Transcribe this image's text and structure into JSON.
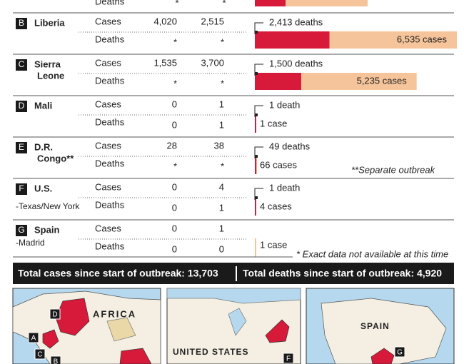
{
  "partial_row": {
    "deaths_label": "Deaths",
    "deaths": [
      "*",
      "*"
    ]
  },
  "rows": [
    {
      "letter": "B",
      "name": [
        "Liberia"
      ],
      "cases_label": "Cases",
      "deaths_label": "Deaths",
      "cases": [
        "4,020",
        "2,515"
      ],
      "deaths": [
        "*",
        "*"
      ],
      "bar_deaths": 2413,
      "bar_deaths_label": "2,413 deaths",
      "bar_cases": 6535,
      "bar_cases_label": "6,535 cases"
    },
    {
      "letter": "C",
      "name": [
        "Sierra",
        "Leone"
      ],
      "cases_label": "Cases",
      "deaths_label": "Deaths",
      "cases": [
        "1,535",
        "3,700"
      ],
      "deaths": [
        "*",
        "*"
      ],
      "bar_deaths": 1500,
      "bar_deaths_label": "1,500 deaths",
      "bar_cases": 5235,
      "bar_cases_label": "5,235 cases"
    },
    {
      "letter": "D",
      "name": [
        "Mali"
      ],
      "cases_label": "Cases",
      "deaths_label": "Deaths",
      "cases": [
        "0",
        "1"
      ],
      "deaths": [
        "0",
        "1"
      ],
      "bar_deaths": 1,
      "bar_deaths_label": "1 death",
      "bar_cases": 1,
      "bar_cases_label": "1 case"
    },
    {
      "letter": "E",
      "name": [
        "D.R.",
        "Congo**"
      ],
      "cases_label": "Cases",
      "deaths_label": "Deaths",
      "cases": [
        "28",
        "38"
      ],
      "deaths": [
        "*",
        "*"
      ],
      "bar_deaths": 49,
      "bar_deaths_label": "49 deaths",
      "bar_cases": 66,
      "bar_cases_label": "66 cases",
      "note": "**Separate outbreak"
    },
    {
      "letter": "F",
      "name": [
        "U.S."
      ],
      "sub": "-Texas/New York",
      "cases_label": "Cases",
      "deaths_label": "Deaths",
      "cases": [
        "0",
        "4"
      ],
      "deaths": [
        "0",
        "1"
      ],
      "bar_deaths": 1,
      "bar_deaths_label": "1 death",
      "bar_cases": 4,
      "bar_cases_label": "4 cases"
    },
    {
      "letter": "G",
      "name": [
        "Spain"
      ],
      "sub": "-Madrid",
      "cases_label": "Cases",
      "deaths_label": "Deaths",
      "cases": [
        "0",
        "1"
      ],
      "deaths": [
        "0",
        "0"
      ],
      "bar_deaths": 0,
      "bar_cases": 1,
      "bar_cases_label": "1 case"
    }
  ],
  "footnote": "* Exact data not available at this time",
  "totals": {
    "cases": "Total cases since start of outbreak: 13,703",
    "deaths": "Total deaths since start of outbreak: 4,920"
  },
  "maps": {
    "africa": "AFRICA",
    "us": "UNITED STATES",
    "spain": "SPAIN",
    "markers": [
      "A",
      "B",
      "C",
      "D",
      "F",
      "G"
    ]
  }
}
